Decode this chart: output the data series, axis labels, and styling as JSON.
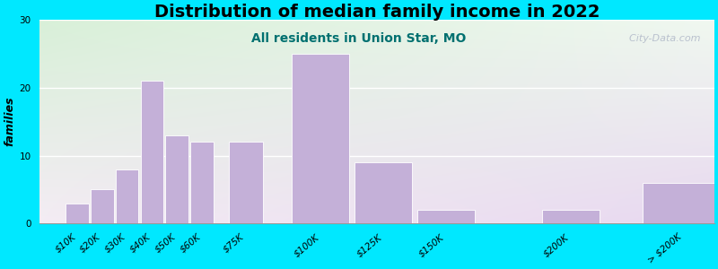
{
  "title": "Distribution of median family income in 2022",
  "subtitle": "All residents in Union Star, MO",
  "ylabel": "families",
  "categories": [
    "$10K",
    "$20K",
    "$30K",
    "$40K",
    "$50K",
    "$60K",
    "$75K",
    "$100K",
    "$125K",
    "$150K",
    "$200K",
    "> $200K"
  ],
  "x_positions": [
    10,
    20,
    30,
    40,
    50,
    60,
    75,
    100,
    125,
    150,
    200,
    240
  ],
  "bar_widths": [
    10,
    10,
    10,
    10,
    10,
    10,
    15,
    25,
    25,
    25,
    25,
    35
  ],
  "values": [
    3,
    5,
    8,
    21,
    13,
    12,
    12,
    25,
    9,
    2,
    2,
    6
  ],
  "bar_color": "#c4b0d8",
  "bar_edgecolor": "#ffffff",
  "background_outer": "#00e8ff",
  "background_grad_topleft": "#d8f0d8",
  "background_grad_bottomright": "#e8d8f0",
  "title_fontsize": 14,
  "subtitle_fontsize": 10,
  "subtitle_color": "#007070",
  "ylabel_fontsize": 9,
  "tick_fontsize": 7.5,
  "ylim": [
    0,
    30
  ],
  "yticks": [
    0,
    10,
    20,
    30
  ],
  "xlim": [
    0,
    270
  ],
  "watermark": "  City-Data.com"
}
